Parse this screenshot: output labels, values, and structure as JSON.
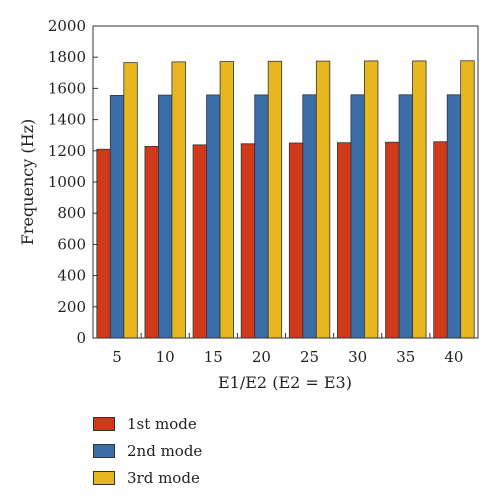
{
  "chart_data": {
    "type": "bar",
    "categories": [
      "5",
      "10",
      "15",
      "20",
      "25",
      "30",
      "35",
      "40"
    ],
    "series": [
      {
        "name": "1st mode",
        "color": "#d03a1b",
        "values": [
          1210,
          1228,
          1238,
          1245,
          1250,
          1252,
          1255,
          1258
        ]
      },
      {
        "name": "2nd mode",
        "color": "#3b6ea8",
        "values": [
          1555,
          1557,
          1558,
          1558,
          1559,
          1559,
          1559,
          1559
        ]
      },
      {
        "name": "3rd mode",
        "color": "#e8b71f",
        "values": [
          1765,
          1770,
          1772,
          1774,
          1775,
          1776,
          1776,
          1777
        ]
      }
    ],
    "xlabel": "E1/E2 (E2 = E3)",
    "ylabel": "Frequency (Hz)",
    "ylim": [
      0,
      2000
    ],
    "yticks": [
      0,
      200,
      400,
      600,
      800,
      1000,
      1200,
      1400,
      1600,
      1800,
      2000
    ],
    "legend_position": "bottom-left",
    "grid": false
  }
}
